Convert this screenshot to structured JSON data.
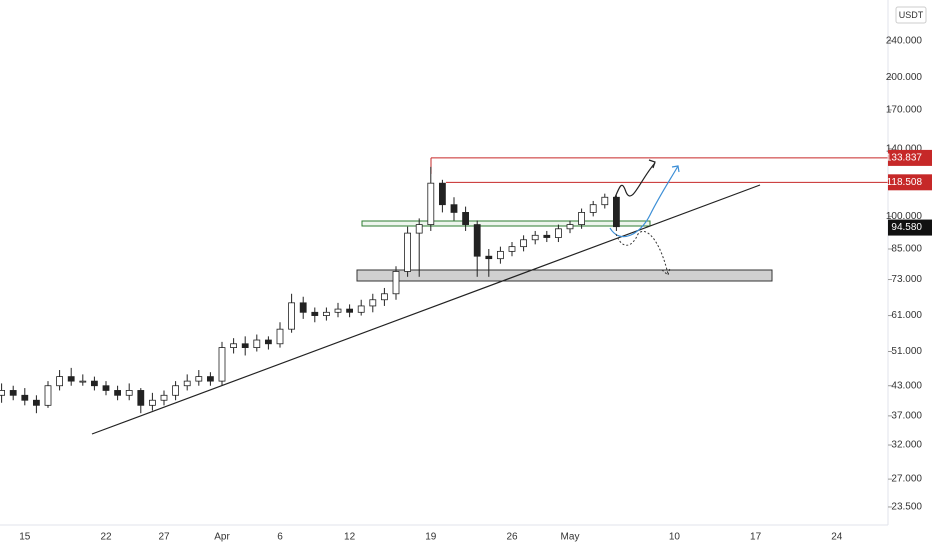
{
  "chart_data": {
    "type": "candlestick",
    "currency": "USDT",
    "x_labels": [
      "15",
      "22",
      "27",
      "Apr",
      "6",
      "12",
      "19",
      "26",
      "May",
      "10",
      "17",
      "24"
    ],
    "candles": {
      "open": [
        41,
        42,
        41,
        40,
        39,
        43,
        45,
        44,
        44,
        43,
        42,
        41,
        42,
        39,
        40,
        41,
        43,
        44,
        45,
        44,
        52,
        53,
        52,
        54,
        53,
        57,
        65,
        62,
        61,
        62,
        63,
        62,
        64,
        66,
        68,
        76,
        92,
        96,
        118,
        106,
        102,
        96,
        82,
        81,
        84,
        86,
        89,
        91,
        90,
        94,
        96,
        102,
        106,
        110
      ],
      "high": [
        43.5,
        43,
        42.5,
        41,
        44,
        46.5,
        47,
        45.5,
        45,
        44,
        43,
        43.5,
        42.5,
        41.5,
        42,
        44,
        45.5,
        46.5,
        46,
        53.5,
        54.5,
        55,
        55.5,
        55,
        59,
        68,
        67,
        63.5,
        63.5,
        65,
        64.5,
        66,
        68,
        70,
        78,
        95,
        99,
        128,
        120,
        110,
        105,
        98,
        85,
        86,
        88,
        91,
        93,
        93,
        96,
        98,
        104,
        108,
        112,
        111
      ],
      "low": [
        39.5,
        40,
        39,
        37.5,
        38.5,
        42,
        43,
        43,
        42,
        41,
        40,
        40,
        37.5,
        38,
        39,
        40,
        42,
        43,
        43,
        43,
        50.5,
        50,
        51,
        51.5,
        52,
        56,
        60,
        59,
        59.5,
        60.5,
        60.5,
        61,
        62,
        64,
        66,
        74,
        74,
        93,
        102,
        98,
        93,
        74,
        74,
        79,
        82,
        84,
        87,
        88,
        88,
        92,
        94,
        100,
        104,
        93
      ],
      "close": [
        42,
        41,
        40,
        39,
        43,
        45,
        44,
        44,
        43,
        42,
        41,
        42,
        39,
        40,
        41,
        43,
        44,
        45,
        44,
        52,
        53,
        52,
        54,
        53,
        57,
        65,
        62,
        61,
        62,
        63,
        62,
        64,
        66,
        68,
        76,
        92,
        96,
        118,
        106,
        102,
        96,
        82,
        81,
        84,
        86,
        89,
        91,
        90,
        94,
        96,
        102,
        106,
        110,
        95
      ]
    },
    "up_color": "#ffffff",
    "down_color": "#222222",
    "log_scale": true,
    "ylim": [
      21.48,
      294
    ],
    "yticks": [
      {
        "value": 23.5,
        "label": "23.500"
      },
      {
        "value": 27,
        "label": "27.000"
      },
      {
        "value": 32,
        "label": "32.000"
      },
      {
        "value": 37,
        "label": "37.000"
      },
      {
        "value": 43,
        "label": "43.000"
      },
      {
        "value": 51,
        "label": "51.000"
      },
      {
        "value": 61,
        "label": "61.000"
      },
      {
        "value": 73,
        "label": "73.000"
      },
      {
        "value": 85,
        "label": "85.000"
      },
      {
        "value": 100,
        "label": "100.000"
      },
      {
        "value": 140,
        "label": "140.000"
      },
      {
        "value": 170,
        "label": "170.000"
      },
      {
        "value": 200,
        "label": "200.000"
      },
      {
        "value": 240,
        "label": "240.000"
      }
    ],
    "price_levels": [
      {
        "value": 133.837,
        "label": "133.837",
        "color": "#c62828"
      },
      {
        "value": 118.508,
        "label": "118.508",
        "color": "#c62828"
      }
    ],
    "last_price": {
      "value": 94.58,
      "label": "94.580",
      "color": "#111111"
    }
  }
}
